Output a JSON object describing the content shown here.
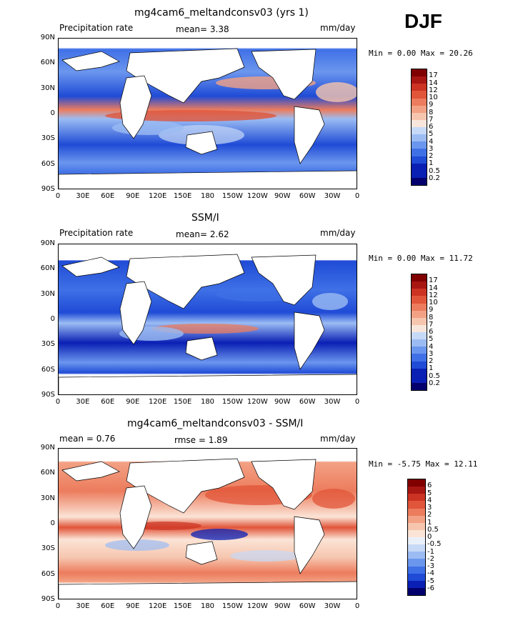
{
  "season": "DJF",
  "panels": [
    {
      "title": "mg4cam6_meltandconsv03 (yrs 1)",
      "left_label": "Precipitation rate",
      "mid_label": "mean=    3.38",
      "units": "mm/day",
      "minmax": "Min =    0.00 Max =  20.26",
      "colorbar_labels": [
        "17",
        "14",
        "12",
        "10",
        "9",
        "8",
        "7",
        "6",
        "5",
        "4",
        "3",
        "2",
        "1",
        "0.5",
        "0.2"
      ]
    },
    {
      "title": "SSM/I",
      "left_label": "Precipitation rate",
      "mid_label": "mean=    2.62",
      "units": "mm/day",
      "minmax": "Min =    0.00 Max =  11.72",
      "colorbar_labels": [
        "17",
        "14",
        "12",
        "10",
        "9",
        "8",
        "7",
        "6",
        "5",
        "4",
        "3",
        "2",
        "1",
        "0.5",
        "0.2"
      ]
    },
    {
      "title": "mg4cam6_meltandconsv03 - SSM/I",
      "left_label": "mean =     0.76",
      "mid_label": "rmse =     1.89",
      "units": "mm/day",
      "minmax": "Min =  -5.75 Max =   12.11",
      "colorbar_labels": [
        "6",
        "5",
        "4",
        "3",
        "2",
        "1",
        "0.5",
        "0",
        "-0.5",
        "-1",
        "-2",
        "-3",
        "-4",
        "-5",
        "-6"
      ]
    }
  ],
  "lat_ticks": [
    "90N",
    "60N",
    "30N",
    "0",
    "30S",
    "60S",
    "90S"
  ],
  "lon_ticks": [
    "0",
    "30E",
    "60E",
    "90E",
    "120E",
    "150E",
    "180",
    "150W",
    "120W",
    "90W",
    "60W",
    "30W",
    "0"
  ],
  "colors": {
    "precip_scale": [
      "#03006e",
      "#0a1fb4",
      "#1f4bd6",
      "#3f70e6",
      "#6b96ee",
      "#9bbcf3",
      "#c6d9f7",
      "#f8e6dc",
      "#f6c5ae",
      "#f3a184",
      "#ec7c5d",
      "#e1553a",
      "#cc3322",
      "#a81612",
      "#800000",
      "#5a0000"
    ],
    "diff_scale": [
      "#03006e",
      "#0a1fb4",
      "#1f4bd6",
      "#3f70e6",
      "#6b96ee",
      "#9bbcf3",
      "#c6d9f7",
      "#eaf0fa",
      "#fbe4d6",
      "#f6c5ae",
      "#f3a184",
      "#ec7c5d",
      "#e1553a",
      "#cc3322",
      "#a81612",
      "#800000"
    ]
  }
}
